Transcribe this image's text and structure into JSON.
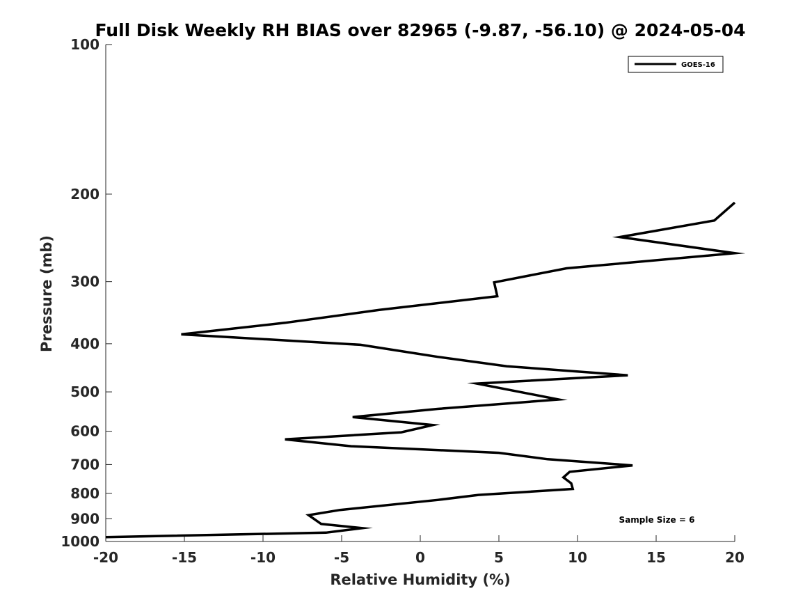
{
  "chart_data": {
    "type": "line",
    "title": "Full Disk Weekly RH BIAS over 82965 (-9.87, -56.10) @ 2024-05-04",
    "xlabel": "Relative Humidity (%)",
    "ylabel": "Pressure (mb)",
    "xlim": [
      -20,
      20
    ],
    "ylim": [
      100,
      1000
    ],
    "y_scale": "log",
    "y_reversed": true,
    "grid": false,
    "legend_position": "top-right",
    "x_ticks": [
      -20,
      -15,
      -10,
      -5,
      0,
      5,
      10,
      15,
      20
    ],
    "x_tick_labels": [
      "-20",
      "-15",
      "-10",
      "-5",
      "0",
      "5",
      "10",
      "15",
      "20"
    ],
    "y_ticks": [
      100,
      200,
      300,
      400,
      500,
      600,
      700,
      800,
      900,
      1000
    ],
    "y_tick_labels": [
      "100",
      "200",
      "300",
      "400",
      "500",
      "600",
      "700",
      "800",
      "900",
      "1000"
    ],
    "series": [
      {
        "name": "GOES-16",
        "color": "#000000",
        "points": [
          [
            20.0,
            208
          ],
          [
            18.7,
            226
          ],
          [
            12.7,
            244
          ],
          [
            20.0,
            263
          ],
          [
            9.3,
            282
          ],
          [
            4.7,
            301
          ],
          [
            4.9,
            321
          ],
          [
            -2.6,
            342
          ],
          [
            -8.6,
            363
          ],
          [
            -15.2,
            383
          ],
          [
            -3.8,
            402
          ],
          [
            1.1,
            425
          ],
          [
            5.5,
            444
          ],
          [
            13.2,
            463
          ],
          [
            3.6,
            481
          ],
          [
            8.8,
            518
          ],
          [
            1.1,
            541
          ],
          [
            -4.3,
            562
          ],
          [
            0.8,
            583
          ],
          [
            -1.2,
            603
          ],
          [
            -8.6,
            623
          ],
          [
            -4.4,
            643
          ],
          [
            5.0,
            663
          ],
          [
            8.1,
            683
          ],
          [
            13.5,
            703
          ],
          [
            9.5,
            724
          ],
          [
            9.1,
            743
          ],
          [
            9.6,
            764
          ],
          [
            9.7,
            784
          ],
          [
            3.7,
            806
          ],
          [
            1.1,
            825
          ],
          [
            -5.1,
            864
          ],
          [
            -7.1,
            885
          ],
          [
            -6.3,
            922
          ],
          [
            -3.7,
            940
          ],
          [
            -6.0,
            960
          ],
          [
            -20.0,
            980
          ]
        ]
      }
    ],
    "annotations": [
      "Sample Size = 6"
    ]
  }
}
